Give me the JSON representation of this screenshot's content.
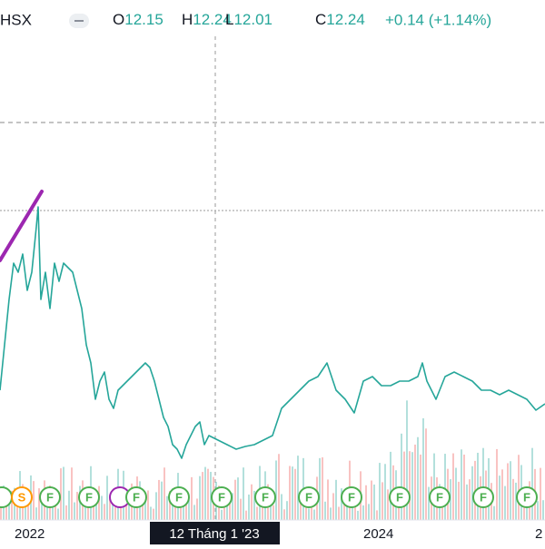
{
  "header": {
    "symbol": "HSX",
    "ohlc": [
      {
        "key": "O",
        "value": "12.15"
      },
      {
        "key": "H",
        "value": "12.24"
      },
      {
        "key": "L",
        "value": "12.01"
      },
      {
        "key": "C",
        "value": "12.24"
      }
    ],
    "change": "+0.14 (+1.14%)"
  },
  "x_axis": {
    "labels": [
      "2022",
      "2024",
      "2"
    ],
    "crosshair_label": "12 Tháng 1 '23"
  },
  "events": [
    "S",
    "F",
    "F",
    "F",
    "F",
    "F",
    "F",
    "F",
    "F",
    "F",
    "F",
    "F",
    "F"
  ]
}
